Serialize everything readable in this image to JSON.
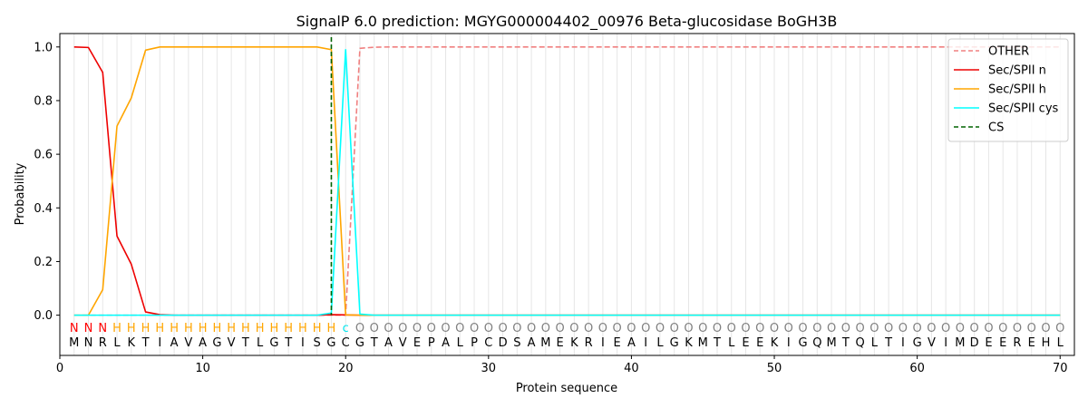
{
  "chart_data": {
    "type": "line",
    "title": "SignalP 6.0 prediction: MGYG000004402_00976 Beta-glucosidase BoGH3B",
    "xlabel": "Protein sequence",
    "ylabel": "Probability",
    "xlim": [
      0,
      71
    ],
    "ylim": [
      -0.15,
      1.05
    ],
    "xticks": [
      0,
      10,
      20,
      30,
      40,
      50,
      60,
      70
    ],
    "yticks": [
      0.0,
      0.2,
      0.4,
      0.6,
      0.8,
      1.0
    ],
    "grid": "vertical lines at each residue",
    "legend_position": "top-right",
    "sequence": [
      "M",
      "N",
      "R",
      "L",
      "K",
      "T",
      "I",
      "A",
      "V",
      "A",
      "G",
      "V",
      "T",
      "L",
      "G",
      "T",
      "I",
      "S",
      "G",
      "C",
      "G",
      "T",
      "A",
      "V",
      "E",
      "P",
      "A",
      "L",
      "P",
      "C",
      "D",
      "S",
      "A",
      "M",
      "E",
      "K",
      "R",
      "I",
      "E",
      "A",
      "I",
      "L",
      "G",
      "K",
      "M",
      "T",
      "L",
      "E",
      "E",
      "K",
      "I",
      "G",
      "Q",
      "M",
      "T",
      "Q",
      "L",
      "T",
      "I",
      "G",
      "V",
      "I",
      "M",
      "D",
      "E",
      "E",
      "R",
      "E",
      "H",
      "L"
    ],
    "region_labels": [
      "N",
      "N",
      "N",
      "H",
      "H",
      "H",
      "H",
      "H",
      "H",
      "H",
      "H",
      "H",
      "H",
      "H",
      "H",
      "H",
      "H",
      "H",
      "H",
      "c",
      "O",
      "O",
      "O",
      "O",
      "O",
      "O",
      "O",
      "O",
      "O",
      "O",
      "O",
      "O",
      "O",
      "O",
      "O",
      "O",
      "O",
      "O",
      "O",
      "O",
      "O",
      "O",
      "O",
      "O",
      "O",
      "O",
      "O",
      "O",
      "O",
      "O",
      "O",
      "O",
      "O",
      "O",
      "O",
      "O",
      "O",
      "O",
      "O",
      "O",
      "O",
      "O",
      "O",
      "O",
      "O",
      "O",
      "O",
      "O",
      "O",
      "O"
    ],
    "region_colors": {
      "N": "#ff0000",
      "H": "#ffa500",
      "c": "#00e5ee",
      "O": "#808080"
    },
    "cleavage_site": 19,
    "series": [
      {
        "name": "OTHER",
        "color": "#f08080",
        "style": "dashed",
        "values": [
          0,
          0,
          0,
          0,
          0,
          0,
          0,
          0,
          0,
          0,
          0,
          0,
          0,
          0,
          0,
          0,
          0,
          0,
          0,
          0,
          0.995,
          0.999,
          1,
          1,
          1,
          1,
          1,
          1,
          1,
          1,
          1,
          1,
          1,
          1,
          1,
          1,
          1,
          1,
          1,
          1,
          1,
          1,
          1,
          1,
          1,
          1,
          1,
          1,
          1,
          1,
          1,
          1,
          1,
          1,
          1,
          1,
          1,
          1,
          1,
          1,
          1,
          1,
          1,
          1,
          1,
          1,
          1,
          1,
          1,
          1
        ]
      },
      {
        "name": "Sec/SPII n",
        "color": "#ee0000",
        "style": "solid",
        "values": [
          1.0,
          0.998,
          0.905,
          0.295,
          0.19,
          0.012,
          0.002,
          0,
          0,
          0,
          0,
          0,
          0,
          0,
          0,
          0,
          0,
          0,
          0.002,
          0.001,
          0,
          0,
          0,
          0,
          0,
          0,
          0,
          0,
          0,
          0,
          0,
          0,
          0,
          0,
          0,
          0,
          0,
          0,
          0,
          0,
          0,
          0,
          0,
          0,
          0,
          0,
          0,
          0,
          0,
          0,
          0,
          0,
          0,
          0,
          0,
          0,
          0,
          0,
          0,
          0,
          0,
          0,
          0,
          0,
          0,
          0,
          0,
          0,
          0,
          0
        ]
      },
      {
        "name": "Sec/SPII h",
        "color": "#ffa500",
        "style": "solid",
        "values": [
          0,
          0,
          0.095,
          0.705,
          0.81,
          0.988,
          1.0,
          1.0,
          1.0,
          1.0,
          1.0,
          1.0,
          1.0,
          1.0,
          1.0,
          1.0,
          1.0,
          1.0,
          0.99,
          0.001,
          0,
          0,
          0,
          0,
          0,
          0,
          0,
          0,
          0,
          0,
          0,
          0,
          0,
          0,
          0,
          0,
          0,
          0,
          0,
          0,
          0,
          0,
          0,
          0,
          0,
          0,
          0,
          0,
          0,
          0,
          0,
          0,
          0,
          0,
          0,
          0,
          0,
          0,
          0,
          0,
          0,
          0,
          0,
          0,
          0,
          0,
          0,
          0,
          0,
          0
        ]
      },
      {
        "name": "Sec/SPII cys",
        "color": "#00ffff",
        "style": "solid",
        "values": [
          0,
          0,
          0,
          0,
          0,
          0,
          0,
          0,
          0,
          0,
          0,
          0,
          0,
          0,
          0,
          0,
          0,
          0,
          0.008,
          0.99,
          0.004,
          0,
          0,
          0,
          0,
          0,
          0,
          0,
          0,
          0,
          0,
          0,
          0,
          0,
          0,
          0,
          0,
          0,
          0,
          0,
          0,
          0,
          0,
          0,
          0,
          0,
          0,
          0,
          0,
          0,
          0,
          0,
          0,
          0,
          0,
          0,
          0,
          0,
          0,
          0,
          0,
          0,
          0,
          0,
          0,
          0,
          0,
          0,
          0,
          0
        ]
      }
    ],
    "cs_legend": {
      "name": "CS",
      "color": "#006400",
      "style": "dashed"
    }
  }
}
